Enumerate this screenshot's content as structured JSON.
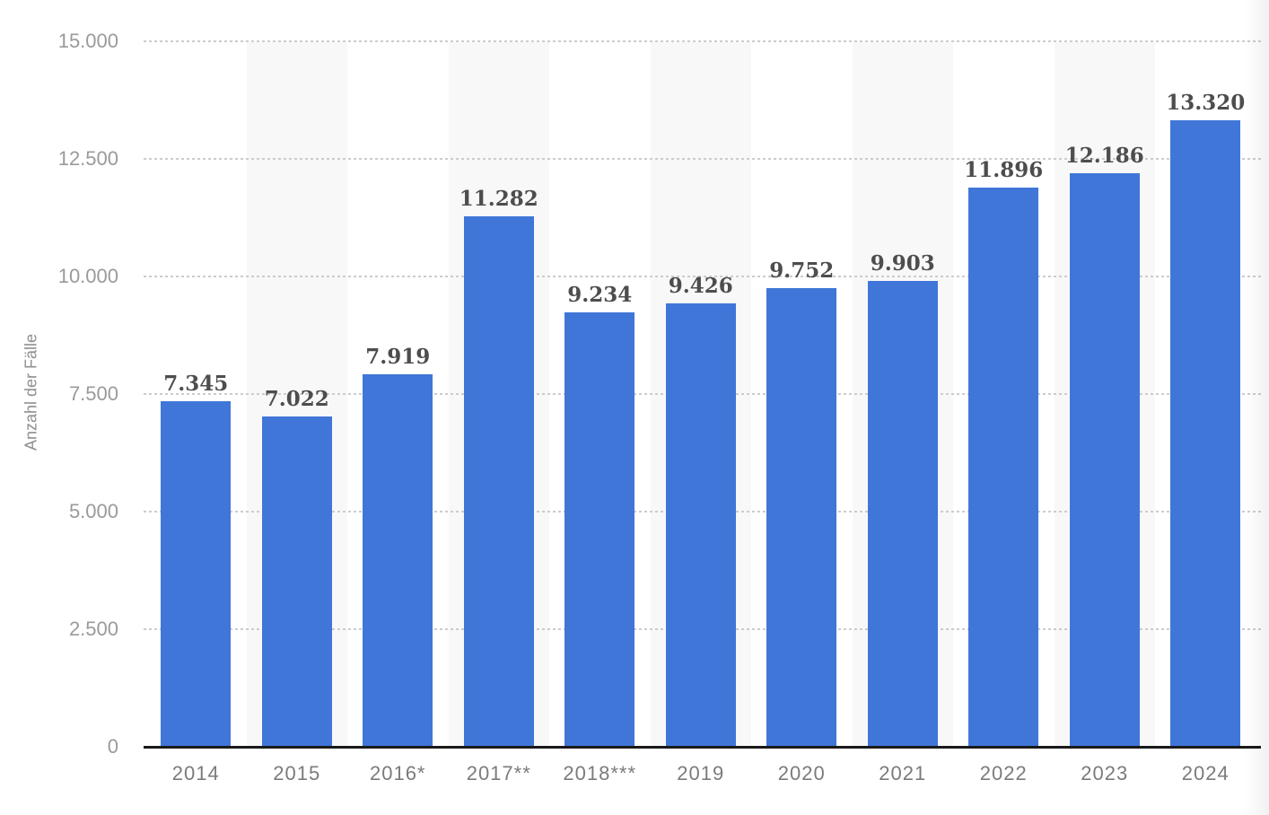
{
  "chart_data": {
    "type": "bar",
    "title": "",
    "xlabel": "",
    "ylabel": "Anzahl der Fälle",
    "ylim": [
      0,
      15000
    ],
    "grid": "horizontal-dotted",
    "legend_position": "none",
    "categories": [
      "2014",
      "2015",
      "2016*",
      "2017**",
      "2018***",
      "2019",
      "2020",
      "2021",
      "2022",
      "2023",
      "2024"
    ],
    "values": [
      7345,
      7022,
      7919,
      11282,
      9234,
      9426,
      9752,
      9903,
      11896,
      12186,
      13320
    ],
    "value_labels": [
      "7.345",
      "7.022",
      "7.919",
      "11.282",
      "9.234",
      "9.426",
      "9.752",
      "9.903",
      "11.896",
      "12.186",
      "13.320"
    ],
    "y_tick_values": [
      0,
      2500,
      5000,
      7500,
      10000,
      12500,
      15000
    ],
    "y_tick_labels": [
      "0",
      "2.500",
      "5.000",
      "7.500",
      "10.000",
      "12.500",
      "15.000"
    ],
    "striped_category_indices": [
      1,
      3,
      5,
      7,
      9
    ]
  },
  "colors": {
    "bar": "#4076d8",
    "bar_value_label": "#4d4d4d",
    "axis_line": "#1a1a1a",
    "y_tick_label": "#9a9a9a",
    "x_category_label": "#7b7b7b",
    "gridline_dot": "#cccccc",
    "stripe": "#f8f8f8",
    "background": "#ffffff"
  }
}
